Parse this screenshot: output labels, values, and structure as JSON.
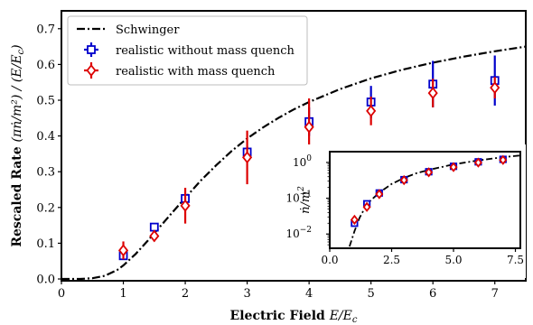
{
  "chart_data": [
    {
      "type": "line",
      "xlabel": "Electric Field E/E_c",
      "xlabel_bold": "Electric Field",
      "xlabel_math": "E/E",
      "xlabel_sub": "c",
      "ylabel": "Rescaled Rate (πṅ/m²) / (E/E_c)",
      "ylabel_bold": "Rescaled Rate",
      "ylabel_math": "(πṅ/m²) / (E/E",
      "ylabel_close": ")",
      "ylabel_sub": "c",
      "xlim": [
        0,
        7.5
      ],
      "ylim": [
        -0.005,
        0.75
      ],
      "xticks": [
        0,
        1,
        2,
        3,
        4,
        5,
        6,
        7
      ],
      "yticks": [
        0.0,
        0.1,
        0.2,
        0.3,
        0.4,
        0.5,
        0.6,
        0.7
      ],
      "legend_position": "top-left",
      "series": [
        {
          "name": "Schwinger",
          "style": "dash-dot",
          "color": "#000000",
          "x": [
            0.0,
            0.3,
            0.5,
            0.7,
            0.9,
            1.0,
            1.2,
            1.4,
            1.6,
            1.8,
            2.0,
            2.25,
            2.5,
            2.75,
            3.0,
            3.25,
            3.5,
            3.75,
            4.0,
            4.5,
            5.0,
            5.5,
            6.0,
            6.5,
            7.0,
            7.5
          ],
          "y": [
            0.0,
            0.0,
            0.002,
            0.009,
            0.025,
            0.038,
            0.07,
            0.108,
            0.148,
            0.188,
            0.227,
            0.275,
            0.318,
            0.358,
            0.393,
            0.423,
            0.45,
            0.474,
            0.495,
            0.531,
            0.561,
            0.585,
            0.605,
            0.622,
            0.637,
            0.65
          ]
        },
        {
          "name": "realistic without mass quench",
          "marker": "square",
          "color": "#0000cc",
          "x": [
            1,
            1.5,
            2,
            3,
            4,
            5,
            6,
            7
          ],
          "y": [
            0.065,
            0.145,
            0.225,
            0.355,
            0.44,
            0.495,
            0.545,
            0.555
          ],
          "yerr": [
            0.01,
            0.01,
            0.015,
            0.015,
            0.04,
            0.045,
            0.065,
            0.07
          ]
        },
        {
          "name": "realistic with mass quench",
          "marker": "diamond",
          "color": "#dd0000",
          "x": [
            1,
            1.5,
            2,
            3,
            4,
            5,
            6,
            7
          ],
          "y": [
            0.08,
            0.12,
            0.205,
            0.34,
            0.425,
            0.47,
            0.52,
            0.535
          ],
          "yerr": [
            0.025,
            0.015,
            0.05,
            0.075,
            0.08,
            0.04,
            0.04,
            0.03
          ]
        }
      ]
    },
    {
      "type": "line",
      "role": "inset",
      "ylabel": "ṅ/m²",
      "ylabel_math": "ṅ/m",
      "ylabel_sup": "2",
      "yscale": "log",
      "xlim": [
        0,
        7.7
      ],
      "ylim": [
        0.004,
        2.0
      ],
      "xticks": [
        "0.0",
        "2.5",
        "5.0",
        "7.5"
      ],
      "yticks": [
        {
          "value": 0.01,
          "base": "10",
          "exp": "−2"
        },
        {
          "value": 0.1,
          "base": "10",
          "exp": "−1"
        },
        {
          "value": 1,
          "base": "10",
          "exp": "0"
        }
      ],
      "series": [
        {
          "name": "Schwinger",
          "style": "dash-dot",
          "color": "#000000",
          "x": [
            0.8,
            1.0,
            1.2,
            1.5,
            2.0,
            2.5,
            3.0,
            3.5,
            4.0,
            5.0,
            6.0,
            7.0,
            7.7
          ],
          "y": [
            0.0045,
            0.012,
            0.028,
            0.069,
            0.143,
            0.25,
            0.37,
            0.5,
            0.62,
            0.88,
            1.14,
            1.4,
            1.57
          ]
        },
        {
          "name": "realistic without mass quench",
          "marker": "square",
          "color": "#0000cc",
          "x": [
            1,
            1.5,
            2,
            3,
            4,
            5,
            6,
            7
          ],
          "y": [
            0.02,
            0.07,
            0.14,
            0.33,
            0.55,
            0.78,
            1.04,
            1.22
          ]
        },
        {
          "name": "realistic with mass quench",
          "marker": "diamond",
          "color": "#dd0000",
          "x": [
            1,
            1.5,
            2,
            3,
            4,
            5,
            6,
            7
          ],
          "y": [
            0.025,
            0.057,
            0.13,
            0.32,
            0.53,
            0.74,
            0.99,
            1.17
          ]
        }
      ]
    }
  ]
}
